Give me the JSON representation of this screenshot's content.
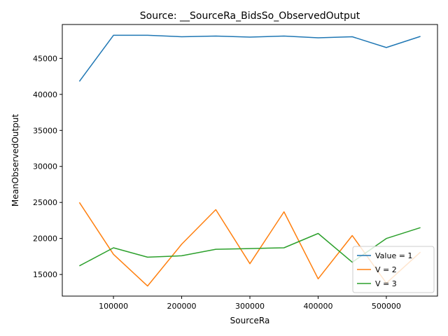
{
  "chart_data": {
    "type": "line",
    "title": "Source: __SourceRa_BidsSo_ObservedOutput",
    "xlabel": "SourceRa",
    "ylabel": "MeanObservedOutput",
    "xlim": [
      25000,
      575000
    ],
    "ylim": [
      12000,
      49700
    ],
    "x_ticks": [
      100000,
      200000,
      300000,
      400000,
      500000
    ],
    "y_ticks": [
      15000,
      20000,
      25000,
      30000,
      35000,
      40000,
      45000
    ],
    "grid": false,
    "legend_position": "lower-right",
    "x": [
      50000,
      100000,
      150000,
      200000,
      250000,
      300000,
      350000,
      400000,
      450000,
      500000,
      550000
    ],
    "series": [
      {
        "name": "Value = 1",
        "color": "#1f77b4",
        "values": [
          41800,
          48200,
          48200,
          48000,
          48100,
          47950,
          48100,
          47850,
          48000,
          46500,
          48050
        ]
      },
      {
        "name": "V = 2",
        "color": "#ff7f0e",
        "values": [
          25000,
          17800,
          13400,
          19200,
          24000,
          16500,
          23700,
          14400,
          20400,
          13800,
          18100
        ]
      },
      {
        "name": "V = 3",
        "color": "#2ca02c",
        "values": [
          16200,
          18700,
          17400,
          17600,
          18500,
          18600,
          18700,
          20700,
          16700,
          20000,
          21500
        ]
      }
    ]
  }
}
